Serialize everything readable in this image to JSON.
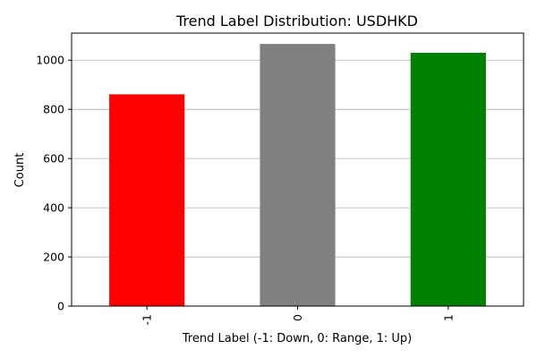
{
  "chart_data": {
    "type": "bar",
    "title": "Trend Label Distribution: USDHKD",
    "xlabel": "Trend Label (-1: Down, 0: Range, 1: Up)",
    "ylabel": "Count",
    "categories": [
      "-1",
      "0",
      "1"
    ],
    "values": [
      861,
      1066,
      1030
    ],
    "colors": [
      "#ff0000",
      "#808080",
      "#008000"
    ],
    "ylim": [
      0,
      1110
    ],
    "yticks": [
      0,
      200,
      400,
      600,
      800,
      1000
    ],
    "grid": "y-axis",
    "legend": "none",
    "x_tick_rotation": "vertical"
  }
}
